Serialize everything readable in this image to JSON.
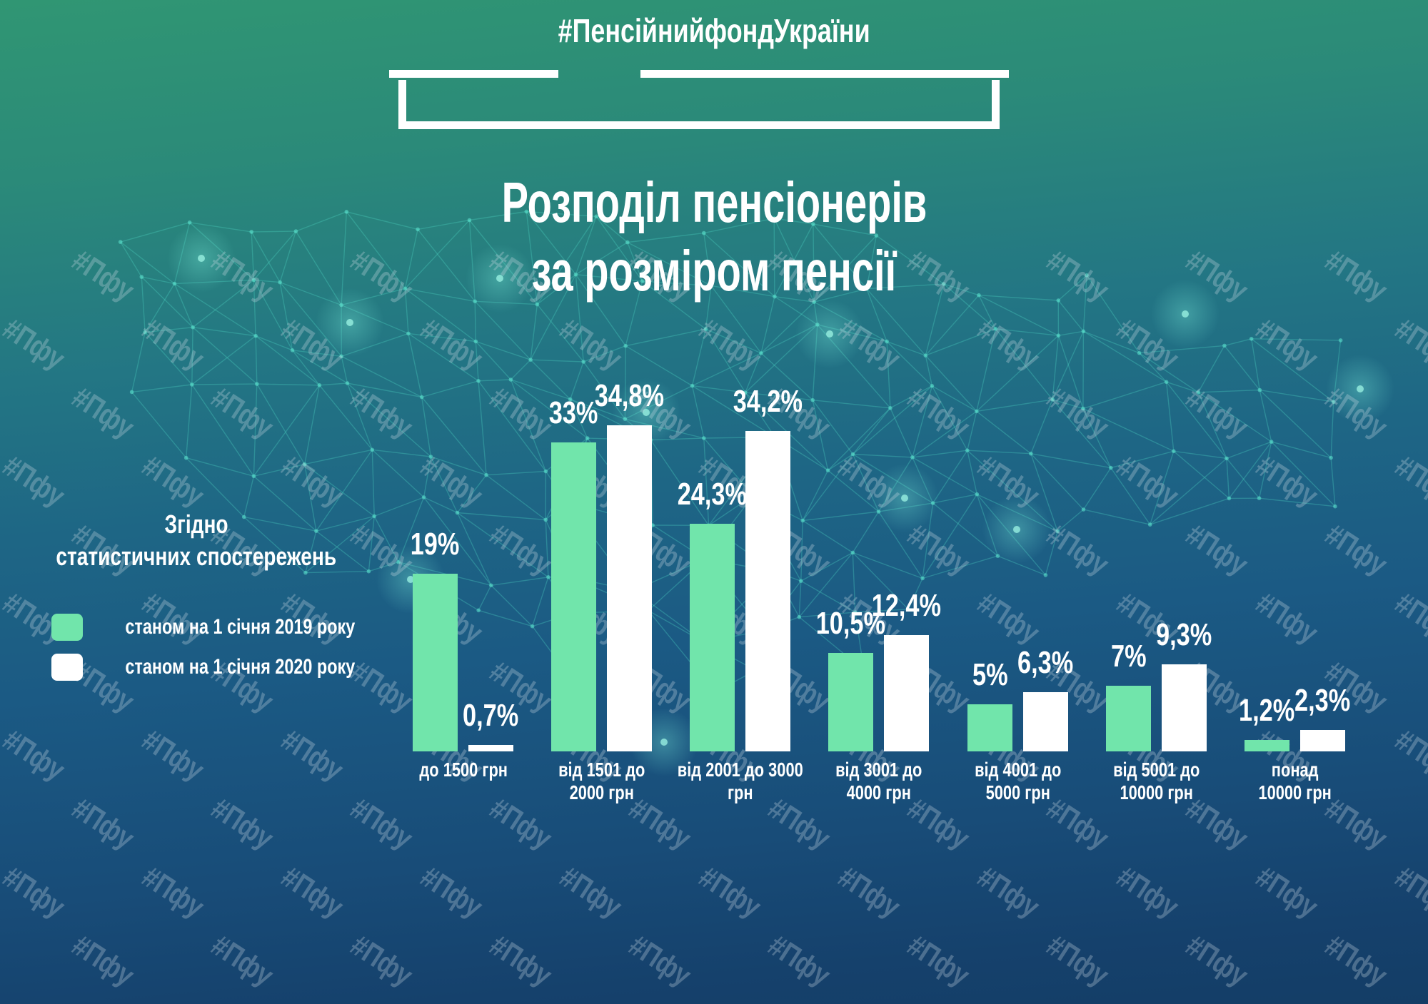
{
  "page": {
    "hashtag": "#ПенсійнийфондУкраїни",
    "title_line1": "Розподіл пенсіонерів",
    "title_line2": "за розміром пенсії",
    "subtitle_line1": "Згідно",
    "subtitle_line2": "статистичних спостережень",
    "watermark": "#Пфу"
  },
  "legend": [
    {
      "label": "станом на 1 січня 2019 року",
      "color": "#71E5AB"
    },
    {
      "label": "станом на 1 січня 2020 року",
      "color": "#FFFFFF"
    }
  ],
  "colors": {
    "bar_2019": "#71E5AB",
    "bar_2020": "#FFFFFF",
    "background_top": "#309673",
    "background_bottom": "#143D66",
    "mesh": "#4FD8C4"
  },
  "chart_data": {
    "type": "bar",
    "title": "Розподіл пенсіонерів за розміром пенсії",
    "subtitle": "Згідно статистичних спостережень",
    "unit": "%",
    "grid": false,
    "legend_position": "left",
    "ylim": [
      0,
      36
    ],
    "categories": [
      "до 1500 грн",
      "від 1501 до\n2000 грн",
      "від 2001 до 3000\nгрн",
      "від 3001 до\n4000 грн",
      "від 4001 до\n5000 грн",
      "від 5001 до\n10000 грн",
      "понад\n10000 грн"
    ],
    "series": [
      {
        "name": "станом на 1 січня 2019 року",
        "color": "#71E5AB",
        "values": [
          19,
          33,
          24.3,
          10.5,
          5,
          7,
          1.2
        ],
        "labels": [
          "19%",
          "33%",
          "24,3%",
          "10,5%",
          "5%",
          "7%",
          "1,2%"
        ]
      },
      {
        "name": "станом на 1 січня 2020 року",
        "color": "#FFFFFF",
        "values": [
          0.7,
          34.8,
          34.2,
          12.4,
          6.3,
          9.3,
          2.3
        ],
        "labels": [
          "0,7%",
          "34,8%",
          "34,2%",
          "12,4%",
          "6,3%",
          "9,3%",
          "2,3%"
        ]
      }
    ]
  }
}
